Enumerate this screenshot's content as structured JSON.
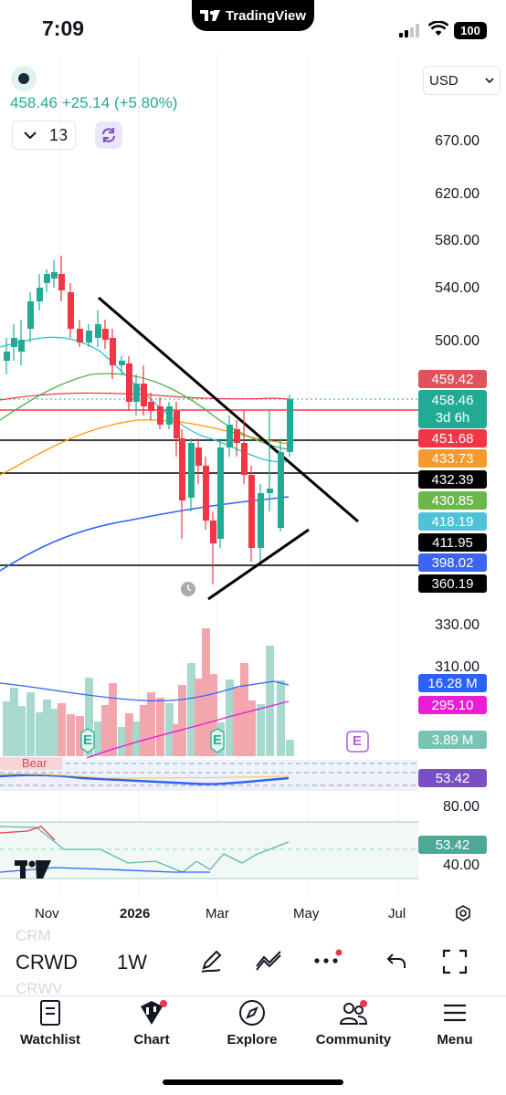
{
  "status": {
    "time": "7:09",
    "battery": "100",
    "app_badge": "TradingView"
  },
  "header": {
    "currency": "USD",
    "price_change": "458.46 +25.14 (+5.80%)",
    "interval_count": "13"
  },
  "price_axis": [
    "670.00",
    "620.00",
    "580.00",
    "540.00",
    "500.00",
    "330.00",
    "310.00",
    "80.00",
    "40.00"
  ],
  "price_tags": {
    "t1": "459.42",
    "t2": "458.46",
    "t2_sub": "3d 6h",
    "t3": "451.68",
    "t4": "433.73",
    "t5": "432.39",
    "t6": "430.85",
    "t7": "418.19",
    "t8": "411.95",
    "t9": "398.02",
    "t10": "360.19",
    "vol1": "16.28 M",
    "vol2": "295.10",
    "vol3": "3.89 M",
    "osc1": "53.42",
    "osc2": "53.42",
    "bear": "Bear"
  },
  "earnings_label": "E",
  "time_axis": [
    "Nov",
    "2026",
    "Mar",
    "May",
    "Jul"
  ],
  "toolbar": {
    "symbol": "CRWD",
    "timeframe": "1W",
    "ghost_above": "CRM",
    "ghost_below": "CRWV"
  },
  "tabs": [
    "Watchlist",
    "Chart",
    "Explore",
    "Community",
    "Menu"
  ],
  "colors": {
    "up": "#22ab94",
    "down": "#f23645",
    "accent": "#2962ff"
  }
}
